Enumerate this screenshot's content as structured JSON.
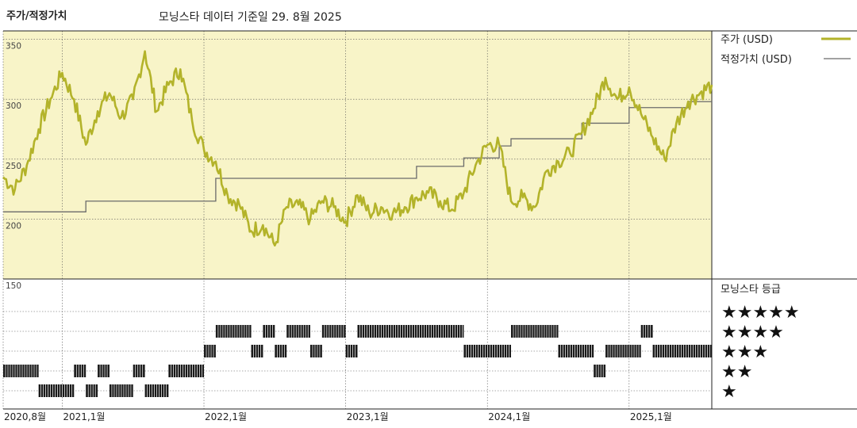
{
  "header": {
    "title": "주가/적정가치",
    "subtitle": "모닝스타 데이터 기준일 29. 8월 2025"
  },
  "colors": {
    "price": "#b3b32a",
    "fair_value": "#6b6b6b",
    "plot_bg": "#f8f4c8",
    "bars": "#1a1a1a"
  },
  "legend": {
    "price_label": "주가 (USD)",
    "fair_value_label": "적정가치 (USD)",
    "rating_title": "모닝스타 등급"
  },
  "chart_data": {
    "type": "line",
    "x_start": "2020-08",
    "x_end": "2025-08",
    "x_ticks": [
      {
        "label": "2020,8월",
        "x": "2020-08"
      },
      {
        "label": "2021,1월",
        "x": "2021-01"
      },
      {
        "label": "2022,1월",
        "x": "2022-01"
      },
      {
        "label": "2023,1월",
        "x": "2023-01"
      },
      {
        "label": "2024,1월",
        "x": "2024-01"
      },
      {
        "label": "2025,1월",
        "x": "2025-01"
      }
    ],
    "y_ticks": [
      "350",
      "300",
      "250",
      "200",
      "150"
    ],
    "ylim": [
      150,
      357
    ],
    "series": [
      {
        "name": "주가 (USD)",
        "points": [
          [
            "2020-08",
            235
          ],
          [
            "2020-09",
            225
          ],
          [
            "2020-10",
            245
          ],
          [
            "2020-11",
            275
          ],
          [
            "2020-12",
            300
          ],
          [
            "2021-01",
            322
          ],
          [
            "2021-02",
            300
          ],
          [
            "2021-03",
            262
          ],
          [
            "2021-04",
            290
          ],
          [
            "2021-05",
            305
          ],
          [
            "2021-06",
            285
          ],
          [
            "2021-07",
            300
          ],
          [
            "2021-08",
            340
          ],
          [
            "2021-09",
            290
          ],
          [
            "2021-10",
            312
          ],
          [
            "2021-11",
            325
          ],
          [
            "2021-12",
            282
          ],
          [
            "2022-01",
            258
          ],
          [
            "2022-02",
            248
          ],
          [
            "2022-03",
            220
          ],
          [
            "2022-04",
            212
          ],
          [
            "2022-05",
            190
          ],
          [
            "2022-06",
            195
          ],
          [
            "2022-07",
            178
          ],
          [
            "2022-08",
            210
          ],
          [
            "2022-09",
            212
          ],
          [
            "2022-10",
            200
          ],
          [
            "2022-11",
            215
          ],
          [
            "2022-12",
            210
          ],
          [
            "2023-01",
            198
          ],
          [
            "2023-02",
            220
          ],
          [
            "2023-03",
            205
          ],
          [
            "2023-04",
            210
          ],
          [
            "2023-05",
            205
          ],
          [
            "2023-06",
            210
          ],
          [
            "2023-07",
            218
          ],
          [
            "2023-08",
            222
          ],
          [
            "2023-09",
            215
          ],
          [
            "2023-10",
            208
          ],
          [
            "2023-11",
            222
          ],
          [
            "2023-12",
            245
          ],
          [
            "2024-01",
            262
          ],
          [
            "2024-02",
            262
          ],
          [
            "2024-03",
            215
          ],
          [
            "2024-04",
            218
          ],
          [
            "2024-05",
            210
          ],
          [
            "2024-06",
            240
          ],
          [
            "2024-07",
            248
          ],
          [
            "2024-08",
            255
          ],
          [
            "2024-09",
            272
          ],
          [
            "2024-10",
            292
          ],
          [
            "2024-11",
            318
          ],
          [
            "2024-12",
            300
          ],
          [
            "2025-01",
            310
          ],
          [
            "2025-02",
            288
          ],
          [
            "2025-03",
            268
          ],
          [
            "2025-04",
            250
          ],
          [
            "2025-05",
            280
          ],
          [
            "2025-06",
            298
          ],
          [
            "2025-07",
            305
          ],
          [
            "2025-08",
            312
          ]
        ]
      },
      {
        "name": "적정가치 (USD)",
        "step": true,
        "points": [
          [
            "2020-08",
            206
          ],
          [
            "2021-02",
            206
          ],
          [
            "2021-03",
            215
          ],
          [
            "2022-01",
            215
          ],
          [
            "2022-02",
            234
          ],
          [
            "2023-06",
            234
          ],
          [
            "2023-07",
            244
          ],
          [
            "2023-10",
            244
          ],
          [
            "2023-11",
            251
          ],
          [
            "2024-01",
            251
          ],
          [
            "2024-02",
            261
          ],
          [
            "2024-03",
            267
          ],
          [
            "2024-08",
            267
          ],
          [
            "2024-09",
            280
          ],
          [
            "2024-12",
            280
          ],
          [
            "2025-01",
            293
          ],
          [
            "2025-05",
            293
          ],
          [
            "2025-06",
            298
          ],
          [
            "2025-08",
            298
          ]
        ]
      }
    ],
    "rating_legend": [
      "★★★★★",
      "★★★★",
      "★★★",
      "★★",
      "★"
    ],
    "ratings": [
      {
        "from": "2020-08",
        "to": "2020-11",
        "stars": 2
      },
      {
        "from": "2020-11",
        "to": "2021-02",
        "stars": 1
      },
      {
        "from": "2021-02",
        "to": "2021-03",
        "stars": 2
      },
      {
        "from": "2021-03",
        "to": "2021-04",
        "stars": 1
      },
      {
        "from": "2021-04",
        "to": "2021-05",
        "stars": 2
      },
      {
        "from": "2021-05",
        "to": "2021-07",
        "stars": 1
      },
      {
        "from": "2021-07",
        "to": "2021-08",
        "stars": 2
      },
      {
        "from": "2021-08",
        "to": "2021-10",
        "stars": 1
      },
      {
        "from": "2021-10",
        "to": "2022-01",
        "stars": 2
      },
      {
        "from": "2022-01",
        "to": "2022-02",
        "stars": 3
      },
      {
        "from": "2022-02",
        "to": "2022-05",
        "stars": 4
      },
      {
        "from": "2022-05",
        "to": "2022-06",
        "stars": 3
      },
      {
        "from": "2022-06",
        "to": "2022-07",
        "stars": 4
      },
      {
        "from": "2022-07",
        "to": "2022-08",
        "stars": 3
      },
      {
        "from": "2022-08",
        "to": "2022-10",
        "stars": 4
      },
      {
        "from": "2022-10",
        "to": "2022-11",
        "stars": 3
      },
      {
        "from": "2022-11",
        "to": "2023-01",
        "stars": 4
      },
      {
        "from": "2023-01",
        "to": "2023-02",
        "stars": 3
      },
      {
        "from": "2023-02",
        "to": "2023-11",
        "stars": 4
      },
      {
        "from": "2023-11",
        "to": "2024-03",
        "stars": 3
      },
      {
        "from": "2024-03",
        "to": "2024-07",
        "stars": 4
      },
      {
        "from": "2024-07",
        "to": "2024-10",
        "stars": 3
      },
      {
        "from": "2024-10",
        "to": "2024-11",
        "stars": 2
      },
      {
        "from": "2024-11",
        "to": "2025-02",
        "stars": 3
      },
      {
        "from": "2025-02",
        "to": "2025-03",
        "stars": 4
      },
      {
        "from": "2025-03",
        "to": "2025-08",
        "stars": 3
      }
    ]
  }
}
